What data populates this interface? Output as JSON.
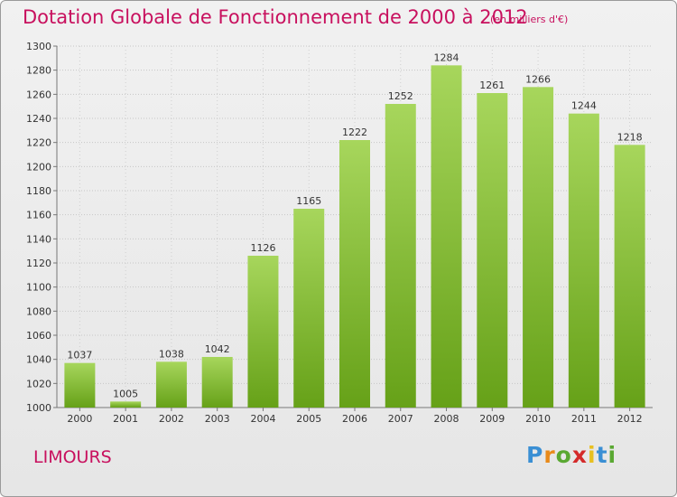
{
  "header": {
    "title": "Dotation Globale de Fonctionnement de 2000 à 2012",
    "subtitle": "(en milliers d'€)"
  },
  "footer": {
    "commune": "LIMOURS",
    "brand_letters": [
      "P",
      "r",
      "o",
      "x",
      "i",
      "t",
      "i"
    ],
    "brand_colors": [
      "#3a8fd4",
      "#e88a1a",
      "#5aa832",
      "#d42a2a",
      "#e8c020",
      "#3a8fd4",
      "#5aa832"
    ]
  },
  "colors": {
    "title": "#c8105e",
    "bar_top": "#a7d65c",
    "bar_bottom": "#66a118",
    "axis_text": "#333333"
  },
  "chart_data": {
    "type": "bar",
    "title": "Dotation Globale de Fonctionnement de 2000 à 2012",
    "categories": [
      "2000",
      "2001",
      "2002",
      "2003",
      "2004",
      "2005",
      "2006",
      "2007",
      "2008",
      "2009",
      "2010",
      "2011",
      "2012"
    ],
    "values": [
      1037,
      1005,
      1038,
      1042,
      1126,
      1165,
      1222,
      1252,
      1284,
      1261,
      1266,
      1244,
      1218
    ],
    "ylim": [
      1000,
      1300
    ],
    "yticks": [
      1000,
      1020,
      1040,
      1060,
      1080,
      1100,
      1120,
      1140,
      1160,
      1180,
      1200,
      1220,
      1240,
      1260,
      1280,
      1300
    ],
    "grid": true,
    "legend": "none"
  }
}
